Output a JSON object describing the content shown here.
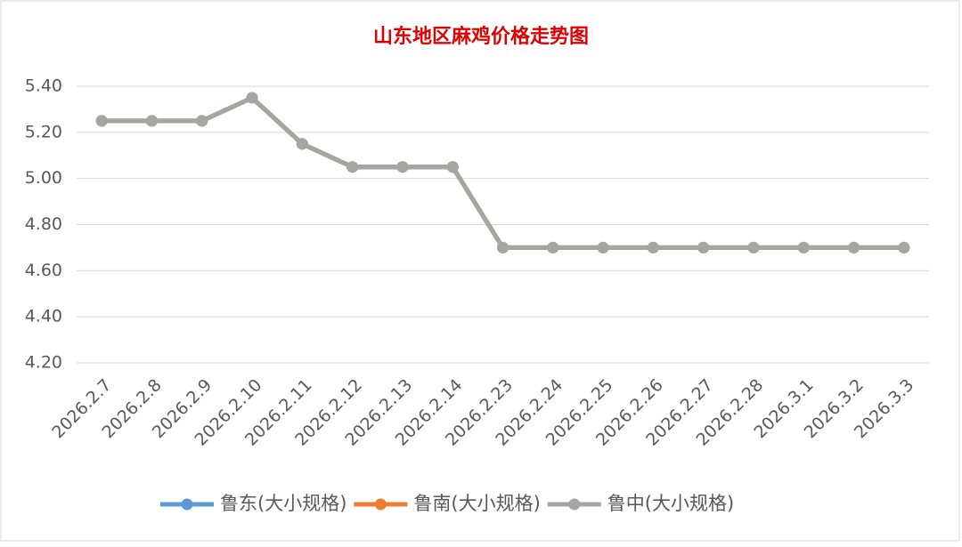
{
  "chart_data": {
    "type": "line",
    "title": "山东地区麻鸡价格走势图",
    "categories": [
      "2026.2.7",
      "2026.2.8",
      "2026.2.9",
      "2026.2.10",
      "2026.2.11",
      "2026.2.12",
      "2026.2.13",
      "2026.2.14",
      "2026.2.23",
      "2026.2.24",
      "2026.2.25",
      "2026.2.26",
      "2026.2.27",
      "2026.2.28",
      "2026.3.1",
      "2026.3.2",
      "2026.3.3"
    ],
    "series": [
      {
        "name": "鲁东(大小规格)",
        "color": "#5b9bd5",
        "values": [
          5.25,
          5.25,
          5.25,
          5.35,
          5.15,
          5.05,
          5.05,
          5.05,
          4.7,
          4.7,
          4.7,
          4.7,
          4.7,
          4.7,
          4.7,
          4.7,
          4.7
        ]
      },
      {
        "name": "鲁南(大小规格)",
        "color": "#ed7d31",
        "values": [
          5.25,
          5.25,
          5.25,
          5.35,
          5.15,
          5.05,
          5.05,
          5.05,
          4.7,
          4.7,
          4.7,
          4.7,
          4.7,
          4.7,
          4.7,
          4.7,
          4.7
        ]
      },
      {
        "name": "鲁中(大小规格)",
        "color": "#a5a5a5",
        "values": [
          5.25,
          5.25,
          5.25,
          5.35,
          5.15,
          5.05,
          5.05,
          5.05,
          4.7,
          4.7,
          4.7,
          4.7,
          4.7,
          4.7,
          4.7,
          4.7,
          4.7
        ]
      }
    ],
    "ylim": [
      4.2,
      5.4
    ],
    "yticks": [
      {
        "value": 4.2,
        "label": "4.20"
      },
      {
        "value": 4.4,
        "label": "4.40"
      },
      {
        "value": 4.6,
        "label": "4.60"
      },
      {
        "value": 4.8,
        "label": "4.80"
      },
      {
        "value": 5.0,
        "label": "5.00"
      },
      {
        "value": 5.2,
        "label": "5.20"
      },
      {
        "value": 5.4,
        "label": "5.40"
      }
    ],
    "grid": true,
    "legend": "bottom"
  }
}
